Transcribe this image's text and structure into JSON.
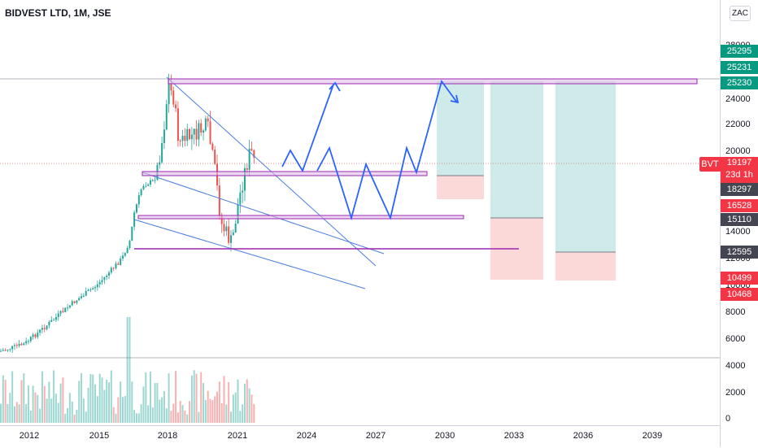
{
  "chart": {
    "title": "BIDVEST LTD, 1M, JSE",
    "currency": "ZAC",
    "symbol": "BVT",
    "last_price": "19197",
    "countdown": "23d 1h",
    "y_ticks": [
      "28000",
      "24000",
      "22000",
      "20000",
      "14000",
      "12000",
      "10000",
      "8000",
      "6000",
      "4000",
      "2000",
      "0"
    ],
    "x_ticks": [
      "2012",
      "2015",
      "2018",
      "2021",
      "2024",
      "2027",
      "2030",
      "2033",
      "2036",
      "2039"
    ],
    "price_labels": [
      {
        "value": "25295",
        "color": "#089981"
      },
      {
        "value": "25231",
        "color": "#089981"
      },
      {
        "value": "25230",
        "color": "#089981"
      },
      {
        "value": "18297",
        "color": "#434651"
      },
      {
        "value": "16528",
        "color": "#f23645"
      },
      {
        "value": "15110",
        "color": "#434651"
      },
      {
        "value": "12595",
        "color": "#434651"
      },
      {
        "value": "10499",
        "color": "#f23645"
      },
      {
        "value": "10468",
        "color": "#f23645"
      }
    ],
    "colors": {
      "up": "#26a69a",
      "down": "#ef5350",
      "trendline": "#4a7de0",
      "level": "#9c27b0",
      "projection": "#2962ff"
    }
  }
}
